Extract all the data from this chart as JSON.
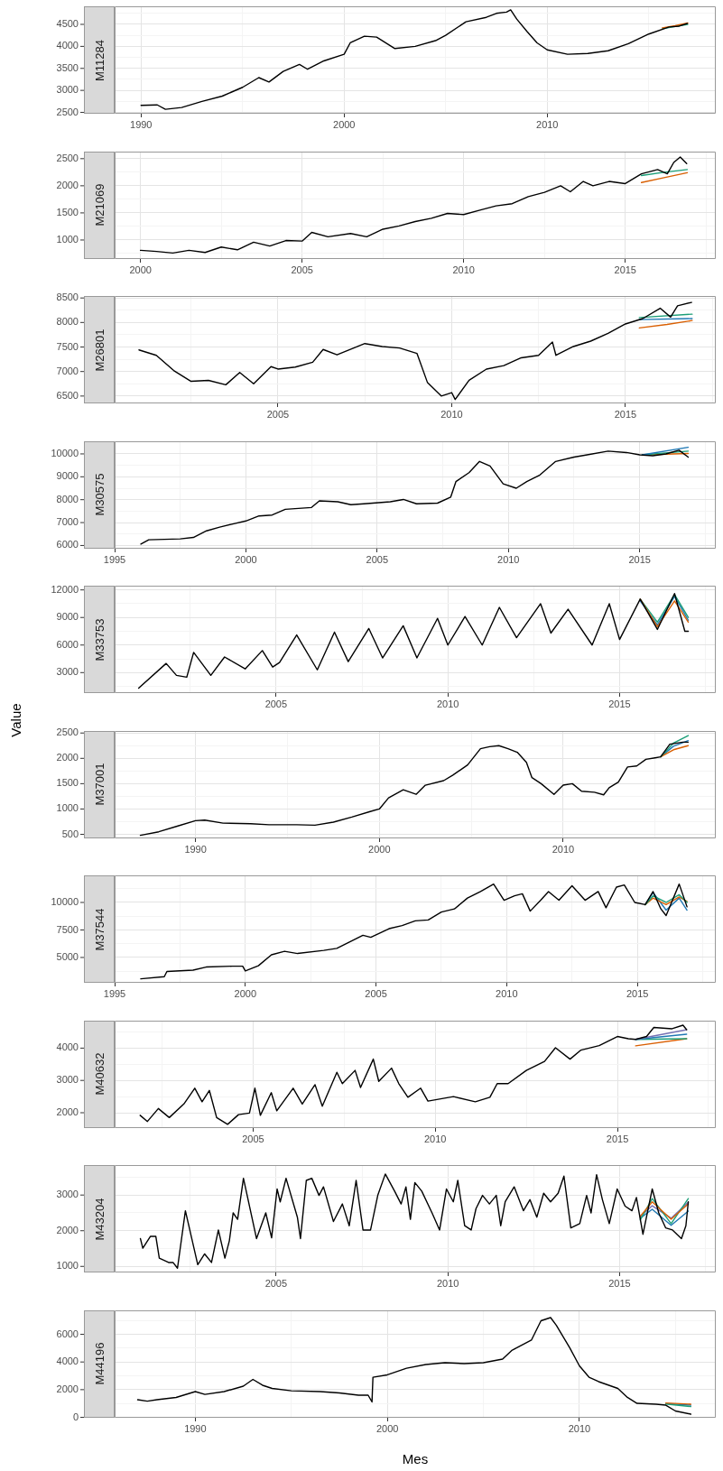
{
  "chart_data": [
    {
      "type": "line",
      "title": "M11284",
      "xlim": [
        1988.7,
        2018.3
      ],
      "xticks": [
        1990,
        {
          "value": 1995,
          "label": null
        },
        2000,
        {
          "value": 2005,
          "label": null
        },
        2010,
        {
          "value": 2015,
          "label": null
        }
      ],
      "ylim": [
        2470,
        4910
      ],
      "yticks": [
        2500,
        {
          "value": 2750,
          "label": null
        },
        3000,
        {
          "value": 3250,
          "label": null
        },
        3500,
        {
          "value": 3750,
          "label": null
        },
        4000,
        {
          "value": 4250,
          "label": null
        },
        4500,
        {
          "value": 4750,
          "label": null
        }
      ],
      "grid": true,
      "marker": "none",
      "series": [
        {
          "color": "#000000",
          "x": [
            1990.0,
            1990.8,
            1991.2,
            1992.0,
            1993.0,
            1994.0,
            1995.0,
            1995.8,
            1996.3,
            1997.0,
            1997.8,
            1998.2,
            1999.0,
            2000.0,
            2000.3,
            2001.0,
            2001.6,
            2002.5,
            2003.5,
            2004.5,
            2005.0,
            2006.0,
            2007.0,
            2007.5,
            2008.0,
            2008.2,
            2008.5,
            2009.0,
            2009.5,
            2010.0,
            2011.0,
            2012.0,
            2013.0,
            2014.0,
            2015.0,
            2016.0,
            2016.5,
            2016.9
          ],
          "values": [
            2660,
            2670,
            2570,
            2610,
            2750,
            2870,
            3070,
            3290,
            3190,
            3430,
            3590,
            3480,
            3670,
            3820,
            4080,
            4230,
            4210,
            3950,
            4000,
            4130,
            4250,
            4560,
            4660,
            4750,
            4780,
            4830,
            4620,
            4340,
            4080,
            3920,
            3820,
            3840,
            3900,
            4060,
            4280,
            4440,
            4460,
            4520
          ]
        },
        {
          "color": "#d95f02",
          "x": [
            2015.67,
            2016.3,
            2016.92
          ],
          "values": [
            4420,
            4470,
            4530
          ]
        },
        {
          "color": "#1b9e77",
          "x": [
            2015.67,
            2016.3,
            2016.92
          ],
          "values": [
            4400,
            4450,
            4500
          ]
        }
      ]
    },
    {
      "type": "line",
      "title": "M21069",
      "xlim": [
        1999.2,
        2017.8
      ],
      "xticks": [
        2000,
        {
          "value": 2002.5,
          "label": null
        },
        2005,
        {
          "value": 2007.5,
          "label": null
        },
        2010,
        {
          "value": 2012.5,
          "label": null
        },
        2015,
        {
          "value": 2017.5,
          "label": null
        }
      ],
      "ylim": [
        650,
        2630
      ],
      "yticks": [
        {
          "value": 750,
          "label": null
        },
        1000,
        {
          "value": 1250,
          "label": null
        },
        1500,
        {
          "value": 1750,
          "label": null
        },
        2000,
        {
          "value": 2250,
          "label": null
        },
        2500
      ],
      "grid": true,
      "marker": "none",
      "series": [
        {
          "color": "#000000",
          "x": [
            2000.0,
            2000.5,
            2001.0,
            2001.5,
            2002.0,
            2002.5,
            2003.0,
            2003.5,
            2004.0,
            2004.5,
            2005.0,
            2005.3,
            2005.8,
            2006.5,
            2007.0,
            2007.5,
            2008.0,
            2008.5,
            2009.0,
            2009.5,
            2010.0,
            2010.5,
            2011.0,
            2011.5,
            2012.0,
            2012.5,
            2013.0,
            2013.3,
            2013.7,
            2014.0,
            2014.5,
            2015.0,
            2015.5,
            2016.0,
            2016.3,
            2016.5,
            2016.7,
            2016.9
          ],
          "values": [
            810,
            790,
            760,
            810,
            770,
            870,
            820,
            960,
            890,
            990,
            980,
            1140,
            1060,
            1120,
            1060,
            1200,
            1260,
            1340,
            1400,
            1490,
            1470,
            1550,
            1630,
            1670,
            1800,
            1880,
            2000,
            1890,
            2080,
            2000,
            2080,
            2040,
            2220,
            2300,
            2220,
            2430,
            2530,
            2410
          ]
        },
        {
          "color": "#1b9e77",
          "x": [
            2015.5,
            2016.2,
            2016.92
          ],
          "values": [
            2190,
            2250,
            2300
          ]
        },
        {
          "color": "#d95f02",
          "x": [
            2015.5,
            2016.2,
            2016.92
          ],
          "values": [
            2060,
            2150,
            2240
          ]
        }
      ]
    },
    {
      "type": "line",
      "title": "M26801",
      "xlim": [
        2000.3,
        2017.6
      ],
      "xticks": [
        {
          "value": 2002.5,
          "label": null
        },
        2005,
        {
          "value": 2007.5,
          "label": null
        },
        2010,
        {
          "value": 2012.5,
          "label": null
        },
        2015,
        {
          "value": 2017.5,
          "label": null
        }
      ],
      "ylim": [
        6350,
        8540
      ],
      "yticks": [
        6500,
        {
          "value": 6750,
          "label": null
        },
        7000,
        {
          "value": 7250,
          "label": null
        },
        7500,
        {
          "value": 7750,
          "label": null
        },
        8000,
        {
          "value": 8250,
          "label": null
        },
        8500
      ],
      "grid": true,
      "marker": "none",
      "series": [
        {
          "color": "#000000",
          "x": [
            2001.0,
            2001.5,
            2002.0,
            2002.5,
            2003.0,
            2003.5,
            2003.9,
            2004.3,
            2004.8,
            2005.0,
            2005.5,
            2006.0,
            2006.3,
            2006.7,
            2007.5,
            2008.0,
            2008.5,
            2009.0,
            2009.3,
            2009.7,
            2010.0,
            2010.1,
            2010.5,
            2011.0,
            2011.5,
            2012.0,
            2012.5,
            2012.9,
            2013.0,
            2013.5,
            2014.0,
            2014.5,
            2015.0,
            2015.5,
            2016.0,
            2016.3,
            2016.5,
            2016.9
          ],
          "values": [
            7440,
            7330,
            7020,
            6800,
            6820,
            6730,
            6980,
            6750,
            7100,
            7050,
            7090,
            7190,
            7450,
            7340,
            7570,
            7510,
            7480,
            7370,
            6780,
            6500,
            6570,
            6430,
            6820,
            7050,
            7120,
            7280,
            7330,
            7600,
            7330,
            7510,
            7620,
            7780,
            7970,
            8080,
            8290,
            8110,
            8340,
            8410
          ]
        },
        {
          "color": "#1b9e77",
          "x": [
            2015.4,
            2016.92
          ],
          "values": [
            8100,
            8170
          ]
        },
        {
          "color": "#1f78b4",
          "x": [
            2015.4,
            2016.92
          ],
          "values": [
            8060,
            8080
          ]
        },
        {
          "color": "#d95f02",
          "x": [
            2015.4,
            2016.2,
            2016.92
          ],
          "values": [
            7890,
            7960,
            8040
          ]
        }
      ]
    },
    {
      "type": "line",
      "title": "M30575",
      "xlim": [
        1995.0,
        2017.9
      ],
      "xticks": [
        1995,
        {
          "value": 1997.5,
          "label": null
        },
        2000,
        {
          "value": 2002.5,
          "label": null
        },
        2005,
        {
          "value": 2007.5,
          "label": null
        },
        2010,
        {
          "value": 2012.5,
          "label": null
        },
        2015,
        {
          "value": 2017.5,
          "label": null
        }
      ],
      "ylim": [
        5860,
        10550
      ],
      "yticks": [
        6000,
        {
          "value": 6500,
          "label": null
        },
        7000,
        {
          "value": 7500,
          "label": null
        },
        8000,
        {
          "value": 8500,
          "label": null
        },
        9000,
        {
          "value": 9500,
          "label": null
        },
        10000
      ],
      "grid": true,
      "marker": "none",
      "series": [
        {
          "color": "#000000",
          "x": [
            1996.0,
            1996.3,
            1997.5,
            1998.0,
            1998.5,
            1999.0,
            1999.5,
            2000.0,
            2000.5,
            2001.0,
            2001.5,
            2002.5,
            2002.8,
            2003.5,
            2004.0,
            2004.5,
            2005.5,
            2006.0,
            2006.5,
            2007.3,
            2007.8,
            2008.0,
            2008.5,
            2008.9,
            2009.3,
            2009.8,
            2010.3,
            2010.7,
            2011.2,
            2011.8,
            2012.5,
            2013.0,
            2013.8,
            2014.5,
            2015.0,
            2015.5,
            2016.0,
            2016.5,
            2016.85
          ],
          "values": [
            6060,
            6250,
            6290,
            6350,
            6640,
            6800,
            6940,
            7070,
            7290,
            7330,
            7580,
            7660,
            7950,
            7910,
            7780,
            7820,
            7910,
            8010,
            7820,
            7850,
            8110,
            8790,
            9180,
            9670,
            9470,
            8690,
            8500,
            8790,
            9080,
            9670,
            9860,
            9960,
            10120,
            10060,
            9960,
            9920,
            10000,
            10160,
            9860
          ]
        },
        {
          "color": "#1f78b4",
          "x": [
            2015.1,
            2016.85
          ],
          "values": [
            9960,
            10290
          ]
        },
        {
          "color": "#1b9e77",
          "x": [
            2015.1,
            2016.85
          ],
          "values": [
            9960,
            10120
          ]
        },
        {
          "color": "#d95f02",
          "x": [
            2015.1,
            2016.85
          ],
          "values": [
            9960,
            10020
          ]
        }
      ]
    },
    {
      "type": "line",
      "title": "M33753",
      "ylabel": "Value",
      "xlim": [
        2000.3,
        2017.8
      ],
      "xticks": [
        {
          "value": 2002.5,
          "label": null
        },
        2005,
        {
          "value": 2007.5,
          "label": null
        },
        2010,
        {
          "value": 2012.5,
          "label": null
        },
        2015,
        {
          "value": 2017.5,
          "label": null
        }
      ],
      "ylim": [
        770,
        12460
      ],
      "yticks": [
        {
          "value": 1500,
          "label": null
        },
        3000,
        {
          "value": 4500,
          "label": null
        },
        6000,
        {
          "value": 7500,
          "label": null
        },
        9000,
        {
          "value": 10500,
          "label": null
        },
        12000
      ],
      "grid": true,
      "marker": "none",
      "series": [
        {
          "color": "#000000",
          "x": [
            2001.0,
            2001.8,
            2002.1,
            2002.4,
            2002.6,
            2003.1,
            2003.5,
            2004.1,
            2004.6,
            2004.9,
            2005.1,
            2005.6,
            2006.2,
            2006.7,
            2007.1,
            2007.7,
            2008.1,
            2008.7,
            2009.1,
            2009.7,
            2010.0,
            2010.5,
            2011.0,
            2011.5,
            2012.0,
            2012.7,
            2013.0,
            2013.5,
            2014.2,
            2014.7,
            2015.0,
            2015.6,
            2016.1,
            2016.6,
            2016.9,
            2017.0
          ],
          "values": [
            1300,
            4000,
            2700,
            2500,
            5200,
            2700,
            4700,
            3400,
            5400,
            3600,
            4100,
            7100,
            3300,
            7400,
            4200,
            7800,
            4600,
            8100,
            4600,
            8900,
            6000,
            9100,
            6000,
            10100,
            6800,
            10500,
            7300,
            9900,
            6000,
            10500,
            6600,
            11000,
            7700,
            11600,
            7500,
            7500
          ]
        },
        {
          "color": "#d95f02",
          "x": [
            2015.6,
            2016.1,
            2016.6,
            2017.0
          ],
          "values": [
            11000,
            8000,
            10800,
            8500
          ]
        },
        {
          "color": "#1b9e77",
          "x": [
            2015.6,
            2016.1,
            2016.6,
            2017.0
          ],
          "values": [
            11000,
            8500,
            11500,
            9000
          ]
        },
        {
          "color": "#1f78b4",
          "x": [
            2015.6,
            2016.1,
            2016.6,
            2017.0
          ],
          "values": [
            10800,
            8200,
            11300,
            8700
          ]
        }
      ]
    },
    {
      "type": "line",
      "title": "M37001",
      "xlim": [
        1985.6,
        2018.3
      ],
      "xticks": [
        1990,
        {
          "value": 1995,
          "label": null
        },
        2000,
        {
          "value": 2005,
          "label": null
        },
        2010,
        {
          "value": 2015,
          "label": null
        }
      ],
      "ylim": [
        420,
        2540
      ],
      "yticks": [
        500,
        {
          "value": 750,
          "label": null
        },
        1000,
        {
          "value": 1250,
          "label": null
        },
        1500,
        {
          "value": 1750,
          "label": null
        },
        2000,
        {
          "value": 2250,
          "label": null
        },
        2500
      ],
      "grid": true,
      "marker": "none",
      "series": [
        {
          "color": "#000000",
          "x": [
            1987.0,
            1988.0,
            1989.0,
            1990.0,
            1990.5,
            1991.5,
            1993.0,
            1994.0,
            1995.5,
            1996.5,
            1997.5,
            1998.5,
            1999.5,
            2000.0,
            2000.5,
            2001.3,
            2002.0,
            2002.5,
            2003.5,
            2004.0,
            2004.8,
            2005.5,
            2006.0,
            2006.5,
            2007.0,
            2007.5,
            2008.0,
            2008.3,
            2008.8,
            2009.5,
            2010.0,
            2010.5,
            2011.0,
            2011.7,
            2012.2,
            2012.5,
            2013.0,
            2013.5,
            2014.0,
            2014.5,
            2015.0,
            2015.3,
            2015.8,
            2016.5,
            2016.8
          ],
          "values": [
            480,
            550,
            660,
            770,
            780,
            720,
            710,
            690,
            690,
            680,
            740,
            840,
            950,
            1000,
            1220,
            1380,
            1290,
            1470,
            1560,
            1670,
            1870,
            2190,
            2230,
            2250,
            2190,
            2120,
            1920,
            1620,
            1500,
            1290,
            1470,
            1500,
            1350,
            1330,
            1280,
            1420,
            1530,
            1830,
            1850,
            1980,
            2010,
            2030,
            2280,
            2320,
            2320
          ]
        },
        {
          "color": "#1b9e77",
          "x": [
            2015.3,
            2016.0,
            2016.8
          ],
          "values": [
            2030,
            2300,
            2450
          ]
        },
        {
          "color": "#d95f02",
          "x": [
            2015.3,
            2016.0,
            2016.8
          ],
          "values": [
            2030,
            2170,
            2250
          ]
        },
        {
          "color": "#1f78b4",
          "x": [
            2015.3,
            2016.0,
            2016.8
          ],
          "values": [
            2030,
            2240,
            2350
          ]
        }
      ]
    },
    {
      "type": "line",
      "title": "M37544",
      "xlim": [
        1995.0,
        2018.0
      ],
      "xticks": [
        1995,
        {
          "value": 1997.5,
          "label": null
        },
        2000,
        {
          "value": 2002.5,
          "label": null
        },
        2005,
        {
          "value": 2007.5,
          "label": null
        },
        2010,
        {
          "value": 2012.5,
          "label": null
        },
        2015,
        {
          "value": 2017.5,
          "label": null
        }
      ],
      "ylim": [
        2700,
        12460
      ],
      "yticks": [
        {
          "value": 3750,
          "label": null
        },
        5000,
        {
          "value": 6250,
          "label": null
        },
        7500,
        {
          "value": 8750,
          "label": null
        },
        10000,
        {
          "value": 11250,
          "label": null
        }
      ],
      "grid": true,
      "marker": "none",
      "series": [
        {
          "color": "#000000",
          "x": [
            1996.0,
            1996.9,
            1997.0,
            1998.0,
            1998.5,
            1999.5,
            1999.9,
            2000.0,
            2000.5,
            2001.0,
            2001.5,
            2002.0,
            2003.0,
            2003.5,
            2004.0,
            2004.5,
            2004.8,
            2005.5,
            2006.0,
            2006.5,
            2007.0,
            2007.5,
            2008.0,
            2008.5,
            2009.0,
            2009.5,
            2009.9,
            2010.3,
            2010.6,
            2010.9,
            2011.3,
            2011.6,
            2012.0,
            2012.5,
            2013.0,
            2013.5,
            2013.8,
            2014.2,
            2014.5,
            2014.9,
            2015.3,
            2015.6,
            2015.9,
            2016.1,
            2016.6,
            2016.9
          ],
          "values": [
            3060,
            3250,
            3730,
            3850,
            4130,
            4210,
            4210,
            3770,
            4250,
            5240,
            5560,
            5360,
            5640,
            5830,
            6430,
            7020,
            6830,
            7620,
            7900,
            8330,
            8410,
            9130,
            9410,
            10400,
            10990,
            11670,
            10200,
            10600,
            10790,
            9210,
            10200,
            10990,
            10200,
            11510,
            10200,
            10990,
            9520,
            11390,
            11590,
            10000,
            9800,
            10990,
            9410,
            8810,
            11670,
            9600
          ]
        },
        {
          "color": "#1b9e77",
          "x": [
            2015.3,
            2015.6,
            2016.1,
            2016.6,
            2016.9
          ],
          "values": [
            9800,
            10600,
            10000,
            10700,
            10000
          ]
        },
        {
          "color": "#d95f02",
          "x": [
            2015.3,
            2015.6,
            2016.1,
            2016.6,
            2016.9
          ],
          "values": [
            9800,
            10400,
            9800,
            10500,
            10100
          ]
        },
        {
          "color": "#1f78b4",
          "x": [
            2015.3,
            2015.6,
            2016.1,
            2016.6,
            2016.9
          ],
          "values": [
            9800,
            10900,
            9300,
            10400,
            9300
          ]
        }
      ]
    },
    {
      "type": "line",
      "title": "M40632",
      "xlim": [
        2001.2,
        2017.7
      ],
      "xticks": [
        {
          "value": 2002.5,
          "label": null
        },
        2005,
        {
          "value": 2007.5,
          "label": null
        },
        2010,
        {
          "value": 2012.5,
          "label": null
        },
        2015,
        {
          "value": 2017.5,
          "label": null
        }
      ],
      "ylim": [
        1525,
        4850
      ],
      "yticks": [
        2000,
        {
          "value": 2500,
          "label": null
        },
        3000,
        {
          "value": 3500,
          "label": null
        },
        4000,
        {
          "value": 4500,
          "label": null
        }
      ],
      "grid": true,
      "marker": "none",
      "series": [
        {
          "color": "#000000",
          "x": [
            2001.9,
            2002.1,
            2002.4,
            2002.7,
            2003.1,
            2003.4,
            2003.6,
            2003.8,
            2004.0,
            2004.3,
            2004.6,
            2004.9,
            2005.05,
            2005.2,
            2005.5,
            2005.65,
            2006.1,
            2006.35,
            2006.7,
            2006.9,
            2007.3,
            2007.45,
            2007.8,
            2007.95,
            2008.3,
            2008.45,
            2008.8,
            2009.0,
            2009.25,
            2009.6,
            2009.8,
            2010.5,
            2011.1,
            2011.5,
            2011.7,
            2012.0,
            2012.5,
            2013.0,
            2013.3,
            2013.7,
            2014.0,
            2014.5,
            2015.0,
            2015.3,
            2015.5,
            2015.8,
            2016.0,
            2016.5,
            2016.8,
            2016.9
          ],
          "values": [
            1920,
            1730,
            2130,
            1850,
            2270,
            2760,
            2340,
            2690,
            1850,
            1640,
            1940,
            1990,
            2760,
            1920,
            2620,
            2060,
            2760,
            2270,
            2870,
            2200,
            3250,
            2900,
            3310,
            2780,
            3660,
            2970,
            3380,
            2900,
            2480,
            2760,
            2360,
            2500,
            2340,
            2480,
            2900,
            2900,
            3310,
            3590,
            4010,
            3660,
            3940,
            4080,
            4360,
            4290,
            4270,
            4360,
            4640,
            4600,
            4710,
            4570
          ]
        },
        {
          "color": "#7570b3",
          "x": [
            2015.5,
            2016.9
          ],
          "values": [
            4270,
            4570
          ]
        },
        {
          "color": "#1f78b4",
          "x": [
            2015.5,
            2016.9
          ],
          "values": [
            4270,
            4430
          ]
        },
        {
          "color": "#1b9e77",
          "x": [
            2015.5,
            2016.9
          ],
          "values": [
            4270,
            4290
          ]
        },
        {
          "color": "#d95f02",
          "x": [
            2015.5,
            2016.9
          ],
          "values": [
            4070,
            4290
          ]
        }
      ]
    },
    {
      "type": "line",
      "title": "M43204",
      "xlim": [
        2000.3,
        2017.8
      ],
      "xticks": [
        {
          "value": 2002.5,
          "label": null
        },
        2005,
        {
          "value": 2007.5,
          "label": null
        },
        2010,
        {
          "value": 2012.5,
          "label": null
        },
        2015,
        {
          "value": 2017.5,
          "label": null
        }
      ],
      "ylim": [
        830,
        3840
      ],
      "yticks": [
        1000,
        {
          "value": 1500,
          "label": null
        },
        2000,
        {
          "value": 2500,
          "label": null
        },
        3000,
        {
          "value": 3500,
          "label": null
        }
      ],
      "grid": true,
      "marker": "none",
      "series": [
        {
          "color": "#000000",
          "x": [
            2001.05,
            2001.12,
            2001.34,
            2001.5,
            2001.6,
            2001.87,
            2002.0,
            2002.13,
            2002.36,
            2002.72,
            2002.92,
            2003.12,
            2003.32,
            2003.51,
            2003.64,
            2003.75,
            2003.88,
            2004.05,
            2004.43,
            2004.7,
            2004.87,
            2005.03,
            2005.12,
            2005.29,
            2005.62,
            2005.71,
            2005.88,
            2006.04,
            2006.25,
            2006.38,
            2006.67,
            2006.93,
            2007.13,
            2007.33,
            2007.53,
            2007.75,
            2007.96,
            2008.18,
            2008.45,
            2008.64,
            2008.78,
            2008.91,
            2009.04,
            2009.24,
            2009.54,
            2009.76,
            2009.96,
            2010.16,
            2010.29,
            2010.49,
            2010.68,
            2010.82,
            2011.01,
            2011.21,
            2011.41,
            2011.54,
            2011.67,
            2011.93,
            2012.2,
            2012.39,
            2012.59,
            2012.79,
            2012.99,
            2013.21,
            2013.38,
            2013.58,
            2013.84,
            2014.04,
            2014.17,
            2014.33,
            2014.5,
            2014.7,
            2014.93,
            2015.16,
            2015.36,
            2015.49,
            2015.68,
            2015.95,
            2016.14,
            2016.34,
            2016.54,
            2016.8,
            2016.93,
            2017.0
          ],
          "values": [
            1780,
            1510,
            1840,
            1840,
            1230,
            1110,
            1110,
            950,
            2560,
            1050,
            1350,
            1110,
            2020,
            1230,
            1720,
            2500,
            2320,
            3470,
            1780,
            2500,
            1800,
            3170,
            2810,
            3470,
            2380,
            1780,
            3410,
            3470,
            2990,
            3230,
            2260,
            2750,
            2140,
            3410,
            2020,
            2020,
            2990,
            3590,
            3110,
            2750,
            3230,
            2320,
            3350,
            3110,
            2500,
            2020,
            3170,
            2810,
            3410,
            2140,
            2020,
            2620,
            2990,
            2750,
            2990,
            2140,
            2810,
            3230,
            2560,
            2870,
            2380,
            3050,
            2810,
            3050,
            3530,
            2080,
            2200,
            2990,
            2500,
            3570,
            2870,
            2200,
            3170,
            2690,
            2560,
            2930,
            1900,
            3170,
            2500,
            2080,
            2020,
            1780,
            2140,
            2810
          ]
        },
        {
          "color": "#d95f02",
          "x": [
            2015.6,
            2015.95,
            2016.5,
            2017.0
          ],
          "values": [
            2400,
            2810,
            2320,
            2750
          ]
        },
        {
          "color": "#1b9e77",
          "x": [
            2015.6,
            2015.95,
            2016.5,
            2017.0
          ],
          "values": [
            2300,
            2900,
            2200,
            2900
          ]
        },
        {
          "color": "#1f78b4",
          "x": [
            2015.6,
            2015.95,
            2016.5,
            2017.0
          ],
          "values": [
            2350,
            2600,
            2150,
            2550
          ]
        },
        {
          "color": "#7570b3",
          "x": [
            2015.6,
            2015.95,
            2016.5,
            2017.0
          ],
          "values": [
            2400,
            2700,
            2350,
            2800
          ]
        }
      ]
    },
    {
      "type": "line",
      "title": "M44196",
      "xlabel": "Mes",
      "xlim": [
        1985.8,
        2017.1
      ],
      "xticks": [
        1990,
        {
          "value": 1995,
          "label": null
        },
        2000,
        {
          "value": 2005,
          "label": null
        },
        2010,
        {
          "value": 2015,
          "label": null
        }
      ],
      "ylim": [
        -30,
        7730
      ],
      "yticks": [
        0,
        {
          "value": 1000,
          "label": null
        },
        2000,
        {
          "value": 3000,
          "label": null
        },
        4000,
        {
          "value": 5000,
          "label": null
        },
        6000,
        {
          "value": 7000,
          "label": null
        }
      ],
      "grid": true,
      "marker": "none",
      "series": [
        {
          "color": "#000000",
          "x": [
            1987.0,
            1987.5,
            1988.0,
            1989.0,
            1990.0,
            1990.5,
            1991.5,
            1992.5,
            1993.0,
            1993.5,
            1994.0,
            1995.0,
            1996.5,
            1997.5,
            1998.5,
            1999.0,
            1999.2,
            1999.25,
            2000.0,
            2001.0,
            2002.0,
            2003.0,
            2004.0,
            2005.0,
            2006.0,
            2006.5,
            2007.5,
            2008.0,
            2008.5,
            2008.8,
            2009.5,
            2010.0,
            2010.5,
            2011.0,
            2012.0,
            2012.5,
            2013.0,
            2014.0,
            2014.5,
            2015.0,
            2015.8
          ],
          "values": [
            1270,
            1170,
            1270,
            1440,
            1860,
            1660,
            1860,
            2250,
            2740,
            2320,
            2090,
            1920,
            1860,
            1760,
            1600,
            1600,
            1110,
            2900,
            3070,
            3550,
            3820,
            3950,
            3880,
            3950,
            4210,
            4860,
            5580,
            6980,
            7210,
            6650,
            5020,
            3720,
            2900,
            2580,
            2090,
            1440,
            1010,
            950,
            880,
            460,
            230
          ]
        },
        {
          "color": "#d95f02",
          "x": [
            2014.5,
            2015.8
          ],
          "values": [
            1040,
            950
          ]
        },
        {
          "color": "#1b9e77",
          "x": [
            2014.5,
            2015.8
          ],
          "values": [
            960,
            780
          ]
        },
        {
          "color": "#1f78b4",
          "x": [
            2014.5,
            2015.8
          ],
          "values": [
            1000,
            880
          ]
        }
      ]
    }
  ]
}
